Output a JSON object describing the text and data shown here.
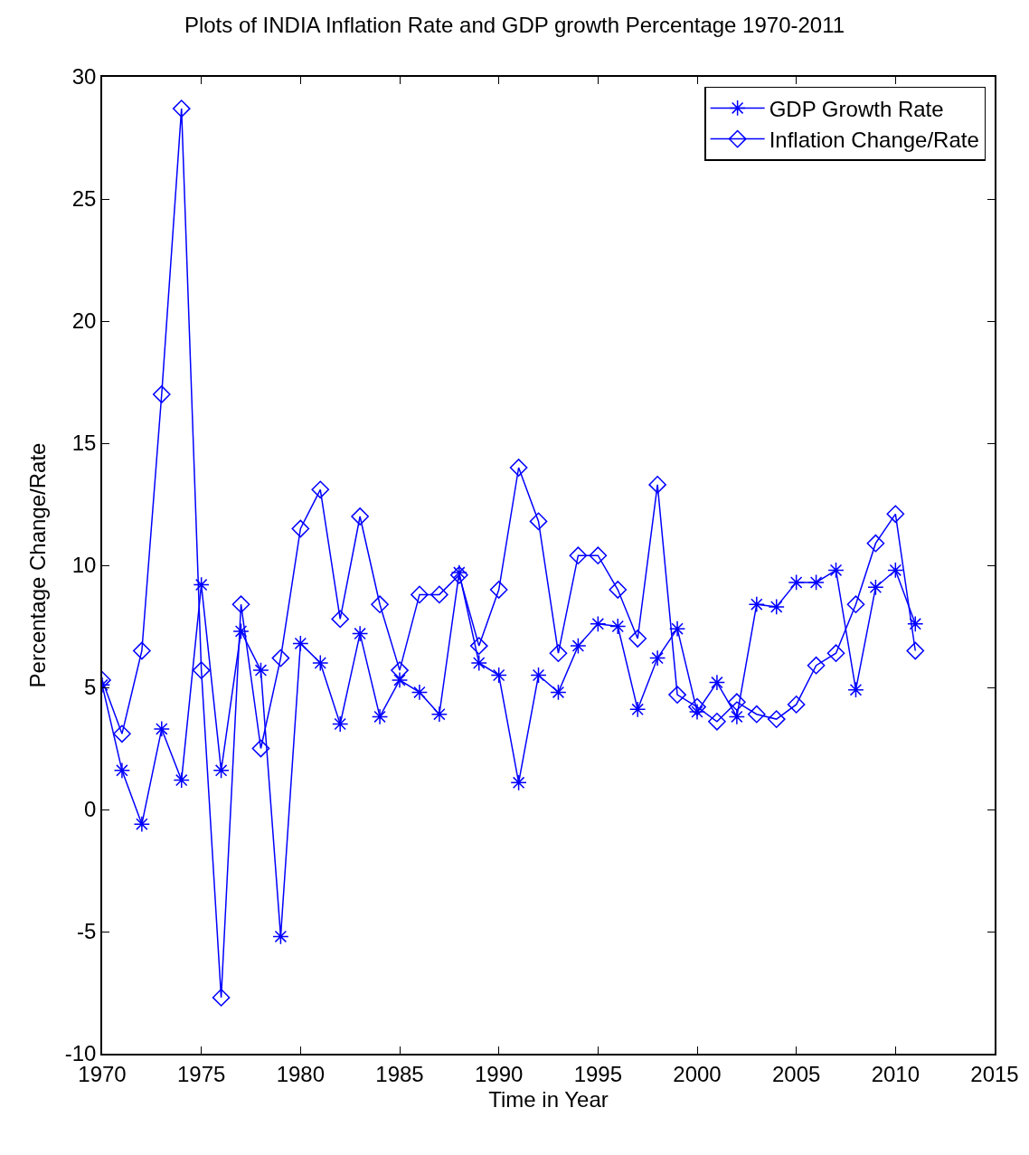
{
  "chart_data": {
    "type": "line",
    "title": "Plots of INDIA Inflation Rate and GDP growth Percentage 1970-2011",
    "xlabel": "Time in Year",
    "ylabel": "Percentage Change/Rate",
    "x": [
      1970,
      1971,
      1972,
      1973,
      1974,
      1975,
      1976,
      1977,
      1978,
      1979,
      1980,
      1981,
      1982,
      1983,
      1984,
      1985,
      1986,
      1987,
      1988,
      1989,
      1990,
      1991,
      1992,
      1993,
      1994,
      1995,
      1996,
      1997,
      1998,
      1999,
      2000,
      2001,
      2002,
      2003,
      2004,
      2005,
      2006,
      2007,
      2008,
      2009,
      2010,
      2011
    ],
    "series": [
      {
        "name": "GDP Growth Rate",
        "color": "#0000ff",
        "marker": "cross",
        "values": [
          5.1,
          1.6,
          -0.6,
          3.3,
          1.2,
          9.2,
          1.6,
          7.3,
          5.7,
          -5.2,
          6.8,
          6.0,
          3.5,
          7.2,
          3.8,
          5.3,
          4.8,
          3.9,
          9.7,
          6.0,
          5.5,
          1.1,
          5.5,
          4.8,
          6.7,
          7.6,
          7.5,
          4.1,
          6.2,
          7.4,
          4.0,
          5.2,
          3.8,
          8.4,
          8.3,
          9.3,
          9.3,
          9.8,
          4.9,
          9.1,
          9.8,
          7.6
        ]
      },
      {
        "name": "Inflation Change/Rate",
        "color": "#0000ff",
        "marker": "diamond",
        "values": [
          5.3,
          3.1,
          6.5,
          17.0,
          28.7,
          5.7,
          -7.7,
          8.4,
          2.5,
          6.2,
          11.5,
          13.1,
          7.8,
          12.0,
          8.4,
          5.7,
          8.8,
          8.8,
          9.6,
          6.7,
          9.0,
          14.0,
          11.8,
          6.4,
          10.4,
          10.4,
          9.0,
          7.0,
          13.3,
          4.7,
          4.2,
          3.6,
          4.4,
          3.9,
          3.7,
          4.3,
          5.9,
          6.4,
          8.4,
          10.9,
          12.1,
          6.5
        ]
      }
    ],
    "xlim": [
      1970,
      2015
    ],
    "xticks": [
      1970,
      1975,
      1980,
      1985,
      1990,
      1995,
      2000,
      2005,
      2010,
      2015
    ],
    "ylim": [
      -10,
      30
    ],
    "yticks": [
      -10,
      -5,
      0,
      5,
      10,
      15,
      20,
      25,
      30
    ],
    "legend": "top right",
    "line_style": "solid"
  }
}
